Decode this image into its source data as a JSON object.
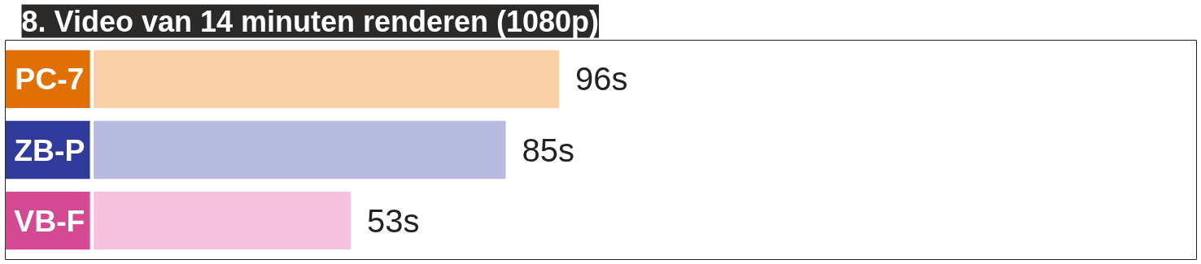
{
  "chart_data": {
    "type": "bar",
    "orientation": "horizontal",
    "title": "8. Video van 14 minuten renderen (1080p)",
    "categories": [
      "PC-7",
      "ZB-P",
      "VB-F"
    ],
    "values": [
      96,
      85,
      53
    ],
    "colors": [
      "#fbd0a6",
      "#b7bbe0",
      "#f6c1dd"
    ],
    "value_labels": [
      "96s",
      "85s",
      "53s"
    ]
  }
}
